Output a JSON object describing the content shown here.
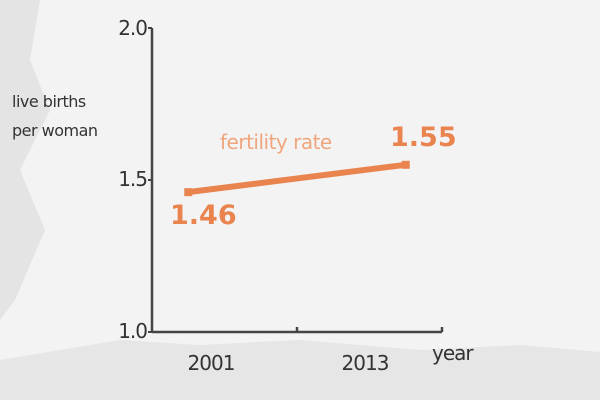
{
  "chart_data": {
    "type": "line",
    "ylabel_lines": [
      "live births",
      "per woman"
    ],
    "xlabel": "year",
    "ylim": [
      1.0,
      2.0
    ],
    "yticks": [
      "1.0",
      "1.5",
      "2.0"
    ],
    "xlim": [
      1999,
      2015
    ],
    "xticks": [
      2007,
      2015
    ],
    "xtick_labels": [
      {
        "x": 2001,
        "label": "2001"
      },
      {
        "x": 2013,
        "label": "2013"
      }
    ],
    "grid": false,
    "series": [
      {
        "name": "fertility rate",
        "color": "#e9844f",
        "label_color": "#f0a57c",
        "x": [
          2001,
          2013
        ],
        "y": [
          1.46,
          1.55
        ],
        "labels": [
          "1.46",
          "1.55"
        ]
      }
    ]
  }
}
